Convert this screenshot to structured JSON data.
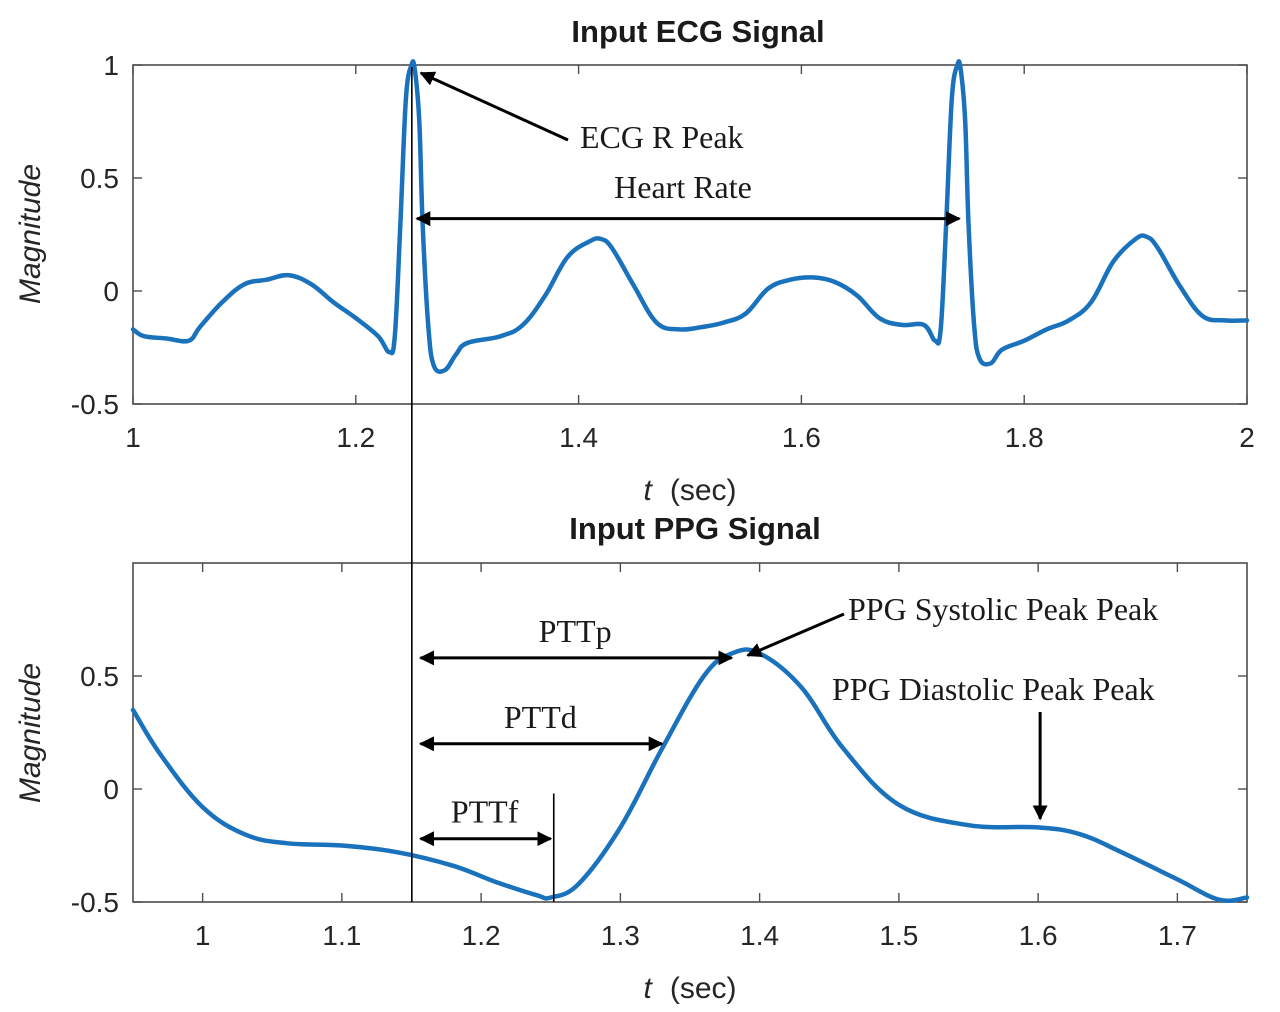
{
  "chart_data": [
    {
      "type": "line",
      "title": "Input ECG Signal",
      "xlabel_var": "t",
      "xlabel_unit": "(sec)",
      "ylabel": "Magnitude",
      "xlim": [
        1,
        2
      ],
      "ylim": [
        -0.5,
        1
      ],
      "x_ticks": [
        1,
        1.2,
        1.4,
        1.6,
        1.8,
        2
      ],
      "x_tick_labels": [
        "1",
        "1.2",
        "1.4",
        "1.6",
        "1.8",
        "2"
      ],
      "y_ticks": [
        -0.5,
        0,
        0.5,
        1
      ],
      "y_tick_labels": [
        "-0.5",
        "0",
        "0.5",
        "1"
      ],
      "grid": false,
      "color": "#1a72bd",
      "series": [
        {
          "x": [
            1.0,
            1.01,
            1.03,
            1.05,
            1.06,
            1.08,
            1.1,
            1.12,
            1.14,
            1.16,
            1.18,
            1.2,
            1.22,
            1.23,
            1.235,
            1.24,
            1.245,
            1.25,
            1.253,
            1.257,
            1.26,
            1.265,
            1.27,
            1.28,
            1.29,
            1.3,
            1.33,
            1.35,
            1.37,
            1.39,
            1.41,
            1.42,
            1.43,
            1.45,
            1.47,
            1.49,
            1.51,
            1.53,
            1.55,
            1.57,
            1.59,
            1.61,
            1.63,
            1.65,
            1.67,
            1.69,
            1.71,
            1.72,
            1.725,
            1.73,
            1.735,
            1.74,
            1.743,
            1.747,
            1.75,
            1.755,
            1.76,
            1.77,
            1.78,
            1.8,
            1.82,
            1.84,
            1.86,
            1.88,
            1.9,
            1.91,
            1.92,
            1.94,
            1.96,
            1.98,
            2.0
          ],
          "y": [
            -0.17,
            -0.2,
            -0.21,
            -0.22,
            -0.16,
            -0.05,
            0.03,
            0.05,
            0.07,
            0.03,
            -0.05,
            -0.12,
            -0.2,
            -0.27,
            -0.2,
            0.3,
            0.85,
            1.0,
            0.98,
            0.75,
            0.3,
            -0.15,
            -0.33,
            -0.35,
            -0.28,
            -0.23,
            -0.2,
            -0.15,
            -0.02,
            0.15,
            0.22,
            0.23,
            0.19,
            0.02,
            -0.14,
            -0.17,
            -0.16,
            -0.14,
            -0.1,
            0.01,
            0.05,
            0.06,
            0.04,
            -0.02,
            -0.12,
            -0.15,
            -0.15,
            -0.22,
            -0.17,
            0.3,
            0.85,
            1.0,
            0.98,
            0.75,
            0.3,
            -0.15,
            -0.3,
            -0.32,
            -0.26,
            -0.22,
            -0.17,
            -0.13,
            -0.05,
            0.13,
            0.23,
            0.24,
            0.19,
            0.02,
            -0.11,
            -0.13,
            -0.13
          ]
        }
      ],
      "annotations": [
        {
          "text": "ECG R Peak",
          "points_to": [
            1.253,
            1.0
          ]
        },
        {
          "text": "Heart Rate",
          "from": [
            1.253,
            0.32
          ],
          "to": [
            1.74,
            0.32
          ]
        }
      ]
    },
    {
      "type": "line",
      "title": "Input PPG Signal",
      "xlabel_var": "t",
      "xlabel_unit": "(sec)",
      "ylabel": "Magnitude",
      "xlim": [
        0.95,
        1.75
      ],
      "ylim": [
        -0.5,
        1.0
      ],
      "x_ticks": [
        1,
        1.1,
        1.2,
        1.3,
        1.4,
        1.5,
        1.6,
        1.7
      ],
      "x_tick_labels": [
        "1",
        "1.1",
        "1.2",
        "1.3",
        "1.4",
        "1.5",
        "1.6",
        "1.7"
      ],
      "y_ticks": [
        -0.5,
        0,
        0.5
      ],
      "y_tick_labels": [
        "-0.5",
        "0",
        "0.5"
      ],
      "grid": false,
      "color": "#1a72bd",
      "series": [
        {
          "x": [
            0.95,
            0.97,
            1.0,
            1.03,
            1.06,
            1.1,
            1.14,
            1.18,
            1.21,
            1.24,
            1.25,
            1.27,
            1.3,
            1.33,
            1.36,
            1.38,
            1.4,
            1.43,
            1.46,
            1.5,
            1.55,
            1.6,
            1.63,
            1.66,
            1.7,
            1.73,
            1.75
          ],
          "y": [
            0.35,
            0.15,
            -0.08,
            -0.2,
            -0.24,
            -0.25,
            -0.28,
            -0.34,
            -0.41,
            -0.47,
            -0.48,
            -0.42,
            -0.17,
            0.18,
            0.5,
            0.6,
            0.6,
            0.45,
            0.18,
            -0.07,
            -0.16,
            -0.17,
            -0.2,
            -0.28,
            -0.4,
            -0.49,
            -0.48
          ]
        }
      ],
      "annotations": [
        {
          "text": "PTTp",
          "from": [
            1.155,
            0.58
          ],
          "to": [
            1.38,
            0.58
          ]
        },
        {
          "text": "PTTd",
          "from": [
            1.155,
            0.2
          ],
          "to": [
            1.33,
            0.2
          ]
        },
        {
          "text": "PTTf",
          "from": [
            1.155,
            -0.22
          ],
          "to": [
            1.25,
            -0.22
          ]
        },
        {
          "text": "PPG Systolic Peak Peak",
          "points_to": [
            1.39,
            0.6
          ]
        },
        {
          "text": "PPG Diastolic Peak Peak",
          "points_to": [
            1.6,
            -0.15
          ]
        }
      ]
    }
  ]
}
